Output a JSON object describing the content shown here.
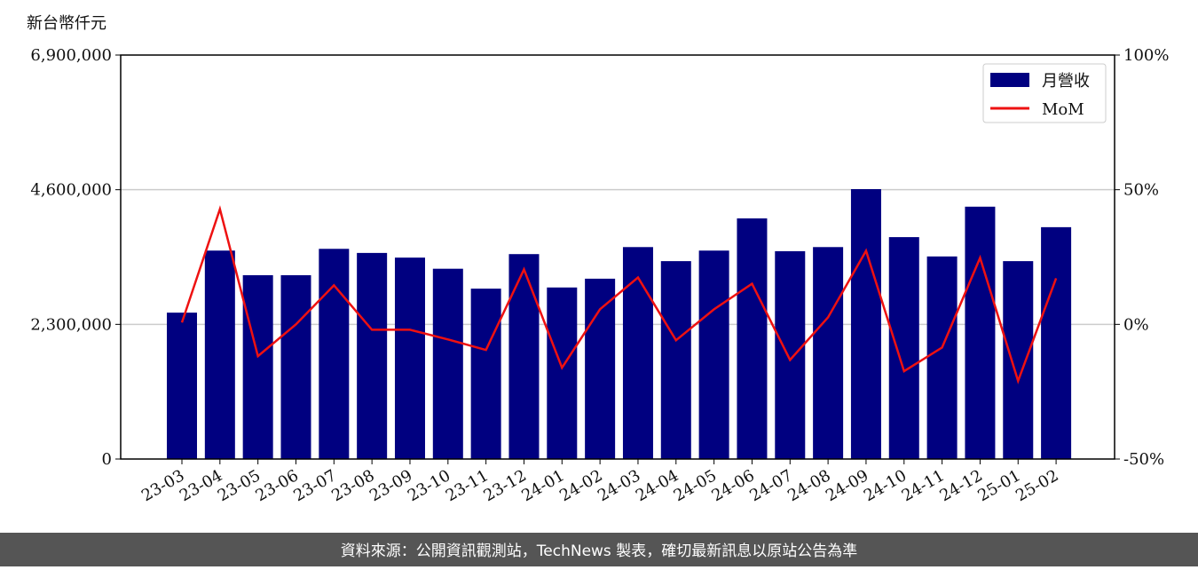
{
  "chart_data": {
    "type": "bar_line",
    "ylabel": "新台幣仟元",
    "categories": [
      "23-03",
      "23-04",
      "23-05",
      "23-06",
      "23-07",
      "23-08",
      "23-09",
      "23-10",
      "23-11",
      "23-12",
      "24-01",
      "24-02",
      "24-03",
      "24-04",
      "24-05",
      "24-06",
      "24-07",
      "24-08",
      "24-09",
      "24-10",
      "24-11",
      "24-12",
      "25-01",
      "25-02"
    ],
    "series": [
      {
        "name": "月營收",
        "color": "#000080",
        "values": [
          2500000,
          3560000,
          3140000,
          3140000,
          3590000,
          3520000,
          3440000,
          3250000,
          2910000,
          3500000,
          2930000,
          3080000,
          3620000,
          3380000,
          3560000,
          4110000,
          3550000,
          3620000,
          4610000,
          3790000,
          3460000,
          4310000,
          3380000,
          3960000
        ]
      },
      {
        "name": "MoM",
        "color": "#ee1111",
        "axis": "y2",
        "values": [
          0.7,
          42.8,
          -11.8,
          0,
          14.5,
          -2,
          -2,
          -5.6,
          -9.5,
          20.4,
          -16.1,
          5.6,
          17.4,
          -5.9,
          5.6,
          15.1,
          -13.2,
          2.6,
          27.3,
          -17.4,
          -8.6,
          24.7,
          -21,
          17.1
        ]
      }
    ],
    "ylim": [
      0,
      6900000
    ],
    "yticks": [
      0,
      {
        "value": 2300000,
        "label": "2,300,000"
      },
      {
        "value": 4600000,
        "label": "4,600,000"
      },
      {
        "value": 6900000,
        "label": "6,900,000"
      }
    ],
    "y2lim": [
      -50,
      100
    ],
    "y2ticks": [
      {
        "value": -50,
        "label": "-50%"
      },
      {
        "value": 0,
        "label": "0%"
      },
      {
        "value": 50,
        "label": "50%"
      },
      {
        "value": 100,
        "label": "100%"
      }
    ],
    "grid": true,
    "legend": "upper right",
    "footer": "資料來源：公開資訊觀測站，TechNews 製表，確切最新訊息以原站公告為準"
  }
}
